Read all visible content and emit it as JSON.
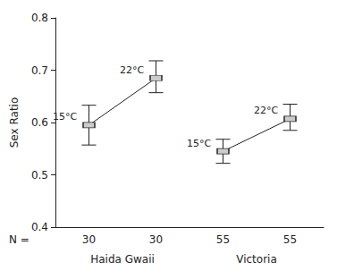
{
  "chart_data": {
    "type": "line",
    "ylabel": "Sex Ratio",
    "categories": [
      "15°C",
      "22°C"
    ],
    "series": [
      {
        "name": "Haida Gwaii",
        "values": [
          0.595,
          0.685
        ],
        "error_upper": [
          0.038,
          0.033
        ],
        "error_lower": [
          0.038,
          0.028
        ],
        "n": [
          30,
          30
        ]
      },
      {
        "name": "Victoria",
        "values": [
          0.545,
          0.607
        ],
        "error_upper": [
          0.023,
          0.028
        ],
        "error_lower": [
          0.023,
          0.022
        ],
        "n": [
          55,
          55
        ]
      }
    ],
    "n_label": "N =",
    "ylim": [
      0.4,
      0.8
    ],
    "yticks": [
      0.4,
      0.5,
      0.6,
      0.7,
      0.8
    ],
    "grid": false,
    "marker": "square",
    "color": "#222222"
  }
}
